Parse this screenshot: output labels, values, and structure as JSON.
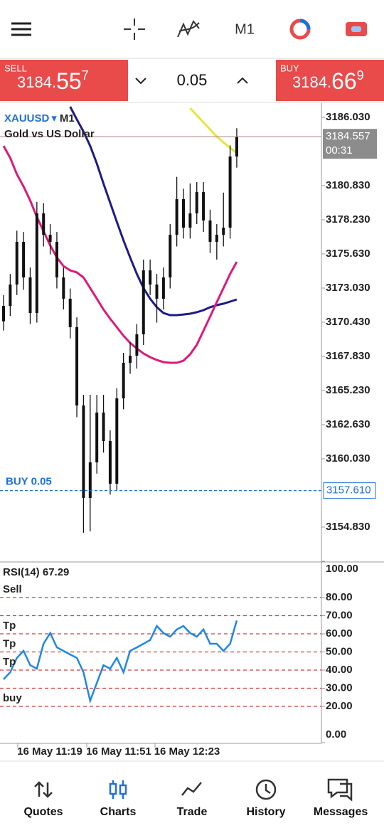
{
  "toolbar": {
    "timeframe": "M1"
  },
  "trade_panel": {
    "sell": {
      "label": "SELL",
      "price_head": "3184.",
      "price_big": "55",
      "price_sup": "7"
    },
    "volume": "0.05",
    "buy": {
      "label": "BUY",
      "price_head": "3184.",
      "price_big": "66",
      "price_sup": "9"
    }
  },
  "chart_data": [
    {
      "type": "candlestick",
      "symbol": "XAUUSD",
      "symbol_menu": "▾",
      "timeframe": "M1",
      "description": "Gold vs US Dollar",
      "open": [
        3170.5,
        3171.67,
        3173.3,
        3176.55,
        3173.84,
        3171.13,
        3178.72,
        3177.09,
        3176.55,
        3173.84,
        3172.22,
        3170.05,
        3164.09,
        3157.05,
        3159.76,
        3163.55,
        3161.38,
        3158.13,
        3164.63,
        3167.34,
        3167.88,
        3169.51,
        3174.38,
        3173.3,
        3172.22,
        3173.84,
        3177.09,
        3179.8,
        3177.63,
        3178.72,
        3180.34,
        3178.18,
        3176.55,
        3177.09,
        3177.63,
        3183.05
      ],
      "high": [
        3172.5,
        3174.1,
        3177.4,
        3177.3,
        3174.6,
        3179.6,
        3179.5,
        3177.9,
        3177.3,
        3174.6,
        3173.0,
        3170.8,
        3164.9,
        3164.9,
        3164.9,
        3164.9,
        3162.2,
        3165.4,
        3168.1,
        3168.9,
        3170.3,
        3175.2,
        3175.2,
        3174.1,
        3174.6,
        3177.9,
        3181.5,
        3180.6,
        3181.0,
        3181.1,
        3181.1,
        3179.0,
        3177.9,
        3180.3,
        3183.9,
        3185.2
      ],
      "low": [
        3169.8,
        3170.9,
        3172.5,
        3172.9,
        3170.3,
        3170.4,
        3176.2,
        3175.6,
        3173.0,
        3171.4,
        3169.2,
        3163.2,
        3154.4,
        3154.5,
        3158.9,
        3160.5,
        3157.3,
        3157.6,
        3163.8,
        3166.5,
        3166.9,
        3168.7,
        3172.5,
        3170.4,
        3171.4,
        3173.0,
        3176.2,
        3176.8,
        3176.8,
        3177.9,
        3177.3,
        3175.7,
        3175.2,
        3176.2,
        3176.8,
        3182.2
      ],
      "close": [
        3171.67,
        3173.3,
        3176.55,
        3173.84,
        3171.13,
        3178.72,
        3177.09,
        3176.55,
        3173.84,
        3172.22,
        3170.05,
        3164.09,
        3157.05,
        3159.76,
        3163.55,
        3161.38,
        3158.13,
        3164.63,
        3167.34,
        3167.88,
        3169.51,
        3174.38,
        3173.3,
        3172.22,
        3173.84,
        3177.09,
        3179.8,
        3177.63,
        3178.72,
        3180.34,
        3178.18,
        3176.55,
        3177.09,
        3177.63,
        3183.05,
        3184.557
      ],
      "candle_color": "#111111",
      "ma_lines": [
        {
          "color": "#1c1c86",
          "values": [
            null,
            null,
            null,
            null,
            null,
            null,
            null,
            null,
            null,
            null,
            3186.84,
            3185.87,
            3184.95,
            3183.86,
            3182.51,
            3180.99,
            3179.53,
            3178.07,
            3176.66,
            3175.36,
            3174.11,
            3173.03,
            3172.22,
            3171.57,
            3171.13,
            3170.97,
            3170.97,
            3171.02,
            3171.08,
            3171.19,
            3171.35,
            3171.57,
            3171.73,
            3171.84,
            3172.0,
            3172.16
          ]
        },
        {
          "color": "#e0187a",
          "values": [
            3183.86,
            3182.94,
            3181.7,
            3180.77,
            3179.69,
            3178.45,
            3177.36,
            3176.28,
            3175.36,
            3174.71,
            3174.38,
            3174.22,
            3173.84,
            3173.03,
            3172.22,
            3171.4,
            3170.7,
            3170.05,
            3169.4,
            3168.86,
            3168.43,
            3168.05,
            3167.77,
            3167.56,
            3167.39,
            3167.34,
            3167.34,
            3167.5,
            3167.99,
            3168.7,
            3169.78,
            3170.86,
            3171.95,
            3173.03,
            3174.11,
            3175.03
          ]
        },
        {
          "color": "#e6e63a",
          "values": [
            null,
            null,
            null,
            null,
            null,
            null,
            null,
            null,
            null,
            null,
            null,
            null,
            null,
            null,
            null,
            null,
            null,
            null,
            null,
            null,
            null,
            null,
            null,
            null,
            null,
            null,
            null,
            null,
            3186.73,
            3186.19,
            3185.65,
            3185.11,
            3184.57,
            3184.13,
            3183.7,
            3183.32
          ]
        }
      ],
      "ylim": [
        3152.173,
        3187.113
      ],
      "yticks": [
        {
          "value": 3186.03,
          "label": "3186.030"
        },
        {
          "value": 3180.83,
          "label": "3180.830"
        },
        {
          "value": 3178.23,
          "label": "3178.230"
        },
        {
          "value": 3175.63,
          "label": "3175.630"
        },
        {
          "value": 3173.03,
          "label": "3173.030"
        },
        {
          "value": 3170.43,
          "label": "3170.430"
        },
        {
          "value": 3167.83,
          "label": "3167.830"
        },
        {
          "value": 3165.23,
          "label": "3165.230"
        },
        {
          "value": 3162.63,
          "label": "3162.630"
        },
        {
          "value": 3160.03,
          "label": "3160.030"
        },
        {
          "value": 3154.83,
          "label": "3154.830"
        }
      ],
      "current_price": {
        "value": 3184.557,
        "label": "3184.557"
      },
      "countdown": "00:31",
      "order_line": {
        "value": 3157.61,
        "label": "3157.610",
        "text": "BUY 0.05",
        "color": "#1e6fd9"
      }
    },
    {
      "type": "line",
      "title": "RSI(14) 67.29",
      "color": "#1e88e5",
      "values": [
        34.9,
        38.8,
        46.7,
        50.6,
        42.7,
        40.8,
        54.5,
        60.4,
        52.5,
        50.6,
        48.6,
        46.7,
        38.8,
        23.1,
        32.9,
        42.7,
        40.8,
        46.7,
        38.8,
        50.6,
        52.5,
        54.5,
        56.5,
        64.3,
        60.4,
        58.4,
        62.4,
        64.3,
        60.4,
        58.4,
        62.4,
        54.5,
        54.5,
        50.6,
        54.5,
        67.29
      ],
      "ylim": [
        0,
        100
      ],
      "yticks": [
        {
          "value": 100,
          "label": "100.00"
        },
        {
          "value": 80,
          "label": "80.00"
        },
        {
          "value": 70,
          "label": "70.00"
        },
        {
          "value": 60,
          "label": "60.00"
        },
        {
          "value": 50,
          "label": "50.00"
        },
        {
          "value": 40,
          "label": "40.00"
        },
        {
          "value": 30,
          "label": "30.00"
        },
        {
          "value": 20,
          "label": "20.00"
        },
        {
          "value": 0,
          "label": "0.00"
        }
      ],
      "levels": [
        {
          "value": 80,
          "text": "Sell"
        },
        {
          "value": 70
        },
        {
          "value": 60,
          "text": "Tp"
        },
        {
          "value": 50,
          "text": "Tp"
        },
        {
          "value": 40,
          "text": "Tp"
        },
        {
          "value": 30
        },
        {
          "value": 20,
          "text": "buy"
        }
      ],
      "level_color": "#d63b3b",
      "x_labels": [
        "16 May 11:19",
        "16 May 11:51",
        "16 May 12:23"
      ]
    }
  ],
  "nav": {
    "items": [
      "Quotes",
      "Charts",
      "Trade",
      "History",
      "Messages"
    ],
    "active_color": "#1e6fd9"
  }
}
